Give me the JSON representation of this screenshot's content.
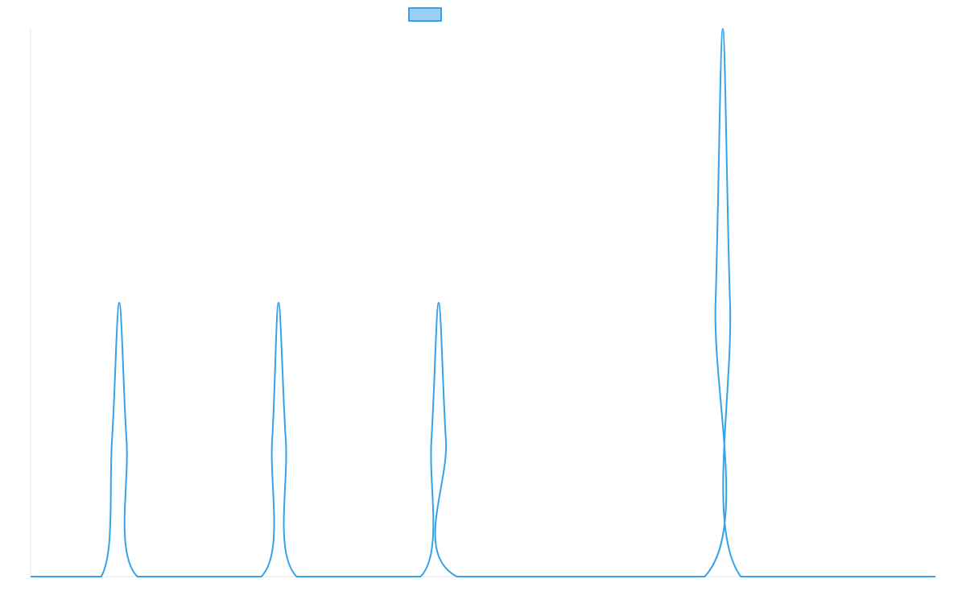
{
  "chart_data": {
    "type": "line",
    "title": "",
    "xlabel": "",
    "ylabel": "",
    "grid": false,
    "legend": {
      "placement": "top-center",
      "entries": [
        {
          "name": "",
          "color": "#36a2eb",
          "fill": "#9ad0f5"
        }
      ]
    },
    "xlim": [
      0,
      1000
    ],
    "ylim": [
      0,
      2
    ],
    "series": [
      {
        "name": "",
        "color": "#36a2eb",
        "points": [
          [
            0,
            0
          ],
          [
            78,
            0
          ],
          [
            90,
            0.5
          ],
          [
            98,
            1
          ],
          [
            106,
            0.5
          ],
          [
            118,
            0
          ],
          [
            255,
            0
          ],
          [
            267,
            0.5
          ],
          [
            274,
            1
          ],
          [
            282,
            0.5
          ],
          [
            294,
            0
          ],
          [
            431,
            0
          ],
          [
            443,
            0.5
          ],
          [
            451,
            1
          ],
          [
            459,
            0.5
          ],
          [
            471,
            0
          ],
          [
            745,
            0
          ],
          [
            757,
            1
          ],
          [
            765,
            2
          ],
          [
            773,
            1
          ],
          [
            785,
            0
          ],
          [
            1000,
            0
          ]
        ]
      }
    ]
  }
}
